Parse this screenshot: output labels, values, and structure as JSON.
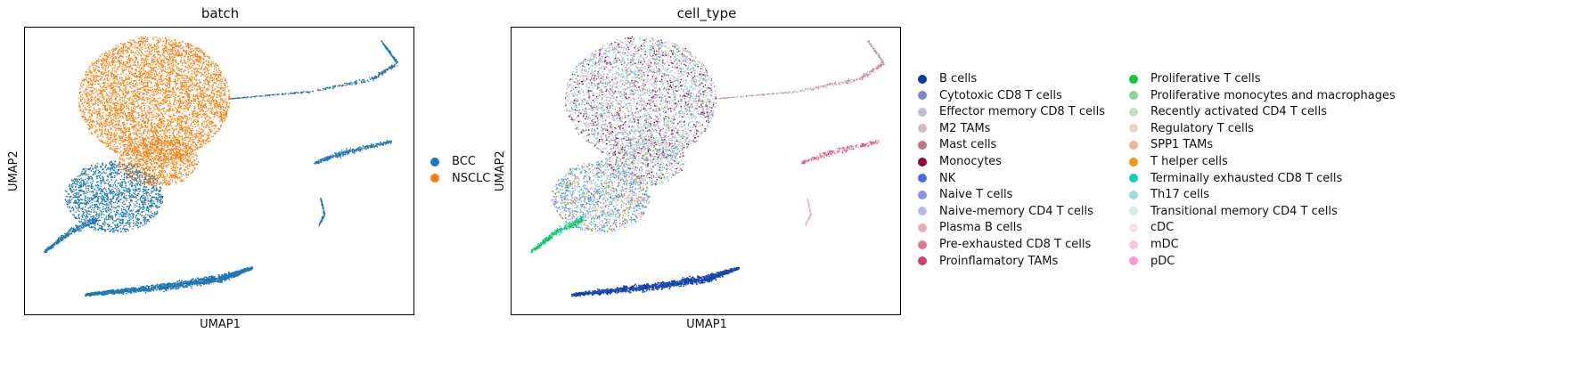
{
  "chart_data": [
    {
      "type": "scatter",
      "title": "batch",
      "xlabel": "UMAP1",
      "ylabel": "UMAP2",
      "grid": false,
      "legend_placement": "right",
      "series": [
        {
          "name": "BCC",
          "color": "#1f77b4"
        },
        {
          "name": "NSCLC",
          "color": "#ff7f0e"
        }
      ]
    },
    {
      "type": "scatter",
      "title": "cell_type",
      "xlabel": "UMAP1",
      "ylabel": "UMAP2",
      "grid": false,
      "legend_placement": "right",
      "series": [
        {
          "name": "B cells",
          "color": "#023fa5"
        },
        {
          "name": "Cytotoxic CD8 T cells",
          "color": "#7d87b9"
        },
        {
          "name": "Effector memory CD8 T cells",
          "color": "#bec1d4"
        },
        {
          "name": "M2 TAMs",
          "color": "#d6bcc0"
        },
        {
          "name": "Mast cells",
          "color": "#bb7784"
        },
        {
          "name": "Monocytes",
          "color": "#8e063b"
        },
        {
          "name": "NK",
          "color": "#4a6fe3"
        },
        {
          "name": "Naive T cells",
          "color": "#8595e1"
        },
        {
          "name": "Naive-memory CD4 T cells",
          "color": "#b5bbe3"
        },
        {
          "name": "Plasma B cells",
          "color": "#e6afb9"
        },
        {
          "name": "Pre-exhausted CD8 T cells",
          "color": "#e07b91"
        },
        {
          "name": "Proinflamatory TAMs",
          "color": "#d33f6a"
        },
        {
          "name": "Proliferative T cells",
          "color": "#11c638"
        },
        {
          "name": "Proliferative monocytes and macrophages",
          "color": "#8dd593"
        },
        {
          "name": "Recently activated CD4 T cells",
          "color": "#c6dec7"
        },
        {
          "name": "Regulatory T cells",
          "color": "#ead3c6"
        },
        {
          "name": "SPP1 TAMs",
          "color": "#f0b98d"
        },
        {
          "name": "T helper cells",
          "color": "#ef9708"
        },
        {
          "name": "Terminally exhausted CD8 T cells",
          "color": "#0fcfc0"
        },
        {
          "name": "Th17 cells",
          "color": "#9cded6"
        },
        {
          "name": "Transitional memory CD4 T cells",
          "color": "#d5eae7"
        },
        {
          "name": "cDC",
          "color": "#f3e1eb"
        },
        {
          "name": "mDC",
          "color": "#f6c4e1"
        },
        {
          "name": "pDC",
          "color": "#f79cd4"
        }
      ]
    }
  ]
}
